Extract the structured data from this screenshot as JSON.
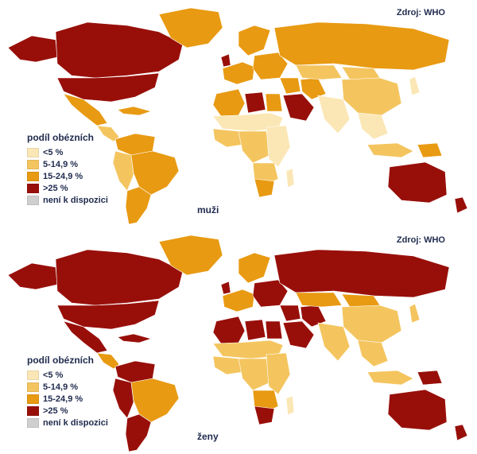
{
  "colors": {
    "lt5": "#fbe7b5",
    "c5_15": "#f4c55f",
    "c15_25": "#e89a12",
    "gt25": "#980f0a",
    "na": "#cfcfcf",
    "text": "#1f2a4d"
  },
  "legend": {
    "title": "podíl obézních",
    "items": [
      {
        "label": "<5 %",
        "color": "#fbe7b5"
      },
      {
        "label": "5-14,9 %",
        "color": "#f4c55f"
      },
      {
        "label": "15-24,9 %",
        "color": "#e89a12"
      },
      {
        "label": ">25 %",
        "color": "#980f0a"
      },
      {
        "label": "není k dispozici",
        "color": "#cfcfcf"
      }
    ]
  },
  "panels": [
    {
      "source": "Zdroj: WHO",
      "caption": "muži",
      "regions": {
        "canada": "gt25",
        "usa": "gt25",
        "greenland": "c15_25",
        "alaska": "gt25",
        "mexico": "c15_25",
        "central_america": "c5_15",
        "caribbean": "c15_25",
        "venezuela_colombia": "c15_25",
        "brazil": "c15_25",
        "peru_andes": "c5_15",
        "southern_cone": "c15_25",
        "scandinavia": "c15_25",
        "western_europe": "c15_25",
        "eastern_europe": "c15_25",
        "uk": "gt25",
        "russia": "c15_25",
        "north_africa": "c15_25",
        "libya": "gt25",
        "egypt": "c15_25",
        "sahel": "lt5",
        "west_africa": "c5_15",
        "central_africa": "c5_15",
        "east_africa": "lt5",
        "southern_africa": "c5_15",
        "south_africa": "c15_25",
        "madagascar": "lt5",
        "arabia": "gt25",
        "middle_east": "c15_25",
        "iran": "c15_25",
        "central_asia": "c5_15",
        "mongolia": "c5_15",
        "china": "c5_15",
        "south_asia": "lt5",
        "southeast_asia": "lt5",
        "indonesia": "c5_15",
        "japan": "lt5",
        "papua": "c15_25",
        "australia": "gt25",
        "new_zealand": "gt25"
      }
    },
    {
      "source": "Zdroj: WHO",
      "caption": "ženy",
      "regions": {
        "canada": "gt25",
        "usa": "gt25",
        "greenland": "c15_25",
        "alaska": "gt25",
        "mexico": "gt25",
        "central_america": "c15_25",
        "caribbean": "gt25",
        "venezuela_colombia": "gt25",
        "brazil": "c15_25",
        "peru_andes": "gt25",
        "southern_cone": "gt25",
        "scandinavia": "c15_25",
        "western_europe": "c15_25",
        "eastern_europe": "gt25",
        "uk": "gt25",
        "russia": "gt25",
        "north_africa": "gt25",
        "libya": "gt25",
        "egypt": "gt25",
        "sahel": "c5_15",
        "west_africa": "c5_15",
        "central_africa": "c5_15",
        "east_africa": "c5_15",
        "southern_africa": "c15_25",
        "south_africa": "gt25",
        "madagascar": "lt5",
        "arabia": "gt25",
        "middle_east": "gt25",
        "iran": "gt25",
        "central_asia": "c15_25",
        "mongolia": "c15_25",
        "china": "c5_15",
        "south_asia": "c5_15",
        "southeast_asia": "c5_15",
        "indonesia": "c5_15",
        "japan": "c5_15",
        "papua": "gt25",
        "australia": "gt25",
        "new_zealand": "gt25"
      }
    }
  ]
}
